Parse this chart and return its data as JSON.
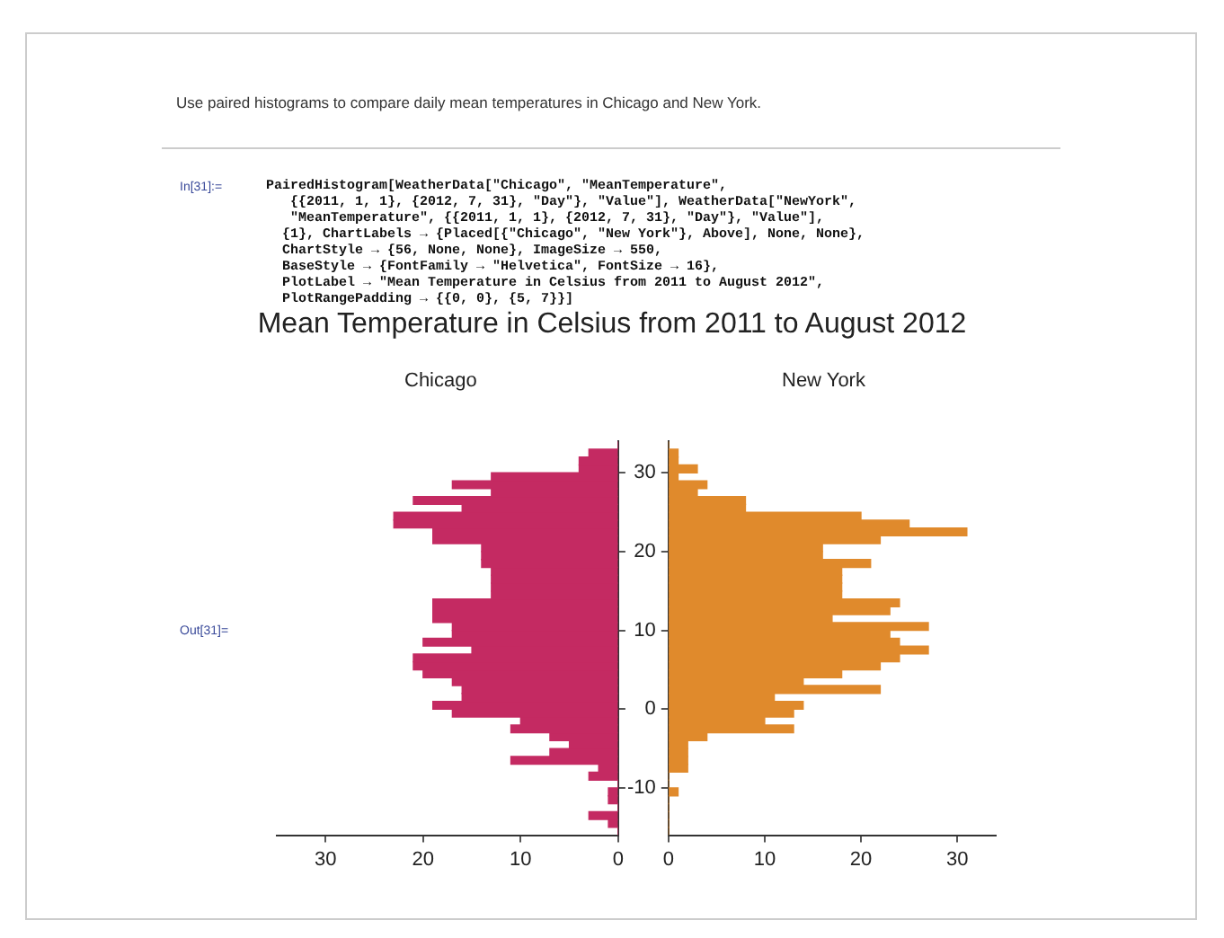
{
  "chart_data": [
    {
      "type": "histogram",
      "orientation": "horizontal",
      "title": "Mean Temperature in Celsius from 2011 to August 2012",
      "subtitle": "Chicago",
      "annotations": [
        "Use paired histograms to compare daily mean temperatures in Chicago and New York.",
        "In[31]:=",
        "PairedHistogram[WeatherData[\"Chicago\", \"MeanTemperature\",",
        "   {{2011, 1, 1}, {2012, 7, 31}, \"Day\"}, \"Value\"], WeatherData[\"NewYork\",",
        "   \"MeanTemperature\", {{2011, 1, 1}, {2012, 7, 31}, \"Day\"}, \"Value\"],",
        "  {1}, ChartLabels → {Placed[{\"Chicago\", \"New York\"}, Above], None, None},",
        "  ChartStyle → {56, None, None}, ImageSize → 550,",
        "  BaseStyle → {FontFamily → \"Helvetica\", FontSize → 16},",
        "  PlotLabel → \"Mean Temperature in Celsius from 2011 to August 2012\",",
        "  PlotRangePadding → {{0, 0}, {5, 7}}]",
        "Out[31]="
      ],
      "bins": [
        -16,
        -15,
        -14,
        -13,
        -12,
        -11,
        -10,
        -9,
        -8,
        -7,
        -6,
        -5,
        -4,
        -3,
        -2,
        -1,
        0,
        1,
        2,
        3,
        4,
        5,
        6,
        7,
        8,
        9,
        10,
        11,
        12,
        13,
        14,
        15,
        16,
        17,
        18,
        19,
        20,
        21,
        22,
        23,
        24,
        25,
        26,
        27,
        28,
        29,
        30,
        31,
        32,
        33,
        34
      ],
      "values": [
        0,
        1,
        3,
        0,
        1,
        1,
        0,
        3,
        2,
        11,
        7,
        5,
        7,
        11,
        10,
        17,
        19,
        16,
        16,
        17,
        20,
        21,
        21,
        15,
        20,
        17,
        17,
        19,
        19,
        19,
        13,
        13,
        13,
        13,
        14,
        14,
        14,
        19,
        19,
        23,
        23,
        16,
        21,
        13,
        17,
        13,
        4,
        4,
        3,
        0
      ],
      "color": "#c42a62",
      "xlim": [
        35,
        0
      ],
      "xticks": [
        30,
        20,
        10,
        0
      ],
      "ylim": [
        -16,
        34
      ],
      "yticks": [
        -10,
        0,
        10,
        20,
        30
      ],
      "tick_labels": "x"
    },
    {
      "type": "histogram",
      "orientation": "horizontal",
      "subtitle": "New York",
      "bins": [
        -16,
        -15,
        -14,
        -13,
        -12,
        -11,
        -10,
        -9,
        -8,
        -7,
        -6,
        -5,
        -4,
        -3,
        -2,
        -1,
        0,
        1,
        2,
        3,
        4,
        5,
        6,
        7,
        8,
        9,
        10,
        11,
        12,
        13,
        14,
        15,
        16,
        17,
        18,
        19,
        20,
        21,
        22,
        23,
        24,
        25,
        26,
        27,
        28,
        29,
        30,
        31,
        32,
        33,
        34
      ],
      "values": [
        0,
        0,
        0,
        0,
        0,
        1,
        0,
        0,
        2,
        2,
        2,
        2,
        4,
        13,
        10,
        13,
        14,
        11,
        22,
        14,
        18,
        22,
        24,
        27,
        24,
        23,
        27,
        17,
        23,
        24,
        18,
        18,
        18,
        18,
        21,
        16,
        16,
        22,
        31,
        25,
        20,
        8,
        8,
        3,
        4,
        1,
        3,
        1,
        1,
        0
      ],
      "color": "#e08a2c",
      "xlim": [
        0,
        34
      ],
      "xticks": [
        0,
        10,
        20,
        30
      ],
      "ylim": [
        -16,
        34
      ],
      "yticks": [
        -10,
        0,
        10,
        20,
        30
      ]
    }
  ]
}
